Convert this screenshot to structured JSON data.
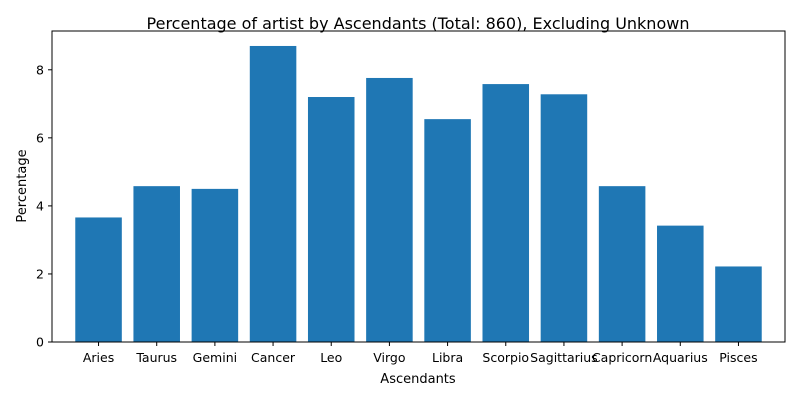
{
  "chart_data": {
    "type": "bar",
    "title": "Percentage of artist by Ascendants (Total: 860), Excluding Unknown",
    "xlabel": "Ascendants",
    "ylabel": "Percentage",
    "categories": [
      "Aries",
      "Taurus",
      "Gemini",
      "Cancer",
      "Leo",
      "Virgo",
      "Libra",
      "Scorpio",
      "Sagittarius",
      "Capricorn",
      "Aquarius",
      "Pisces"
    ],
    "values": [
      3.66,
      4.58,
      4.5,
      8.7,
      7.2,
      7.76,
      6.55,
      7.58,
      7.28,
      4.58,
      3.42,
      2.22
    ],
    "ylim": [
      0,
      9.14
    ],
    "yticks": [
      0,
      2,
      4,
      6,
      8
    ],
    "grid": false,
    "bar_color": "#1f77b4"
  }
}
